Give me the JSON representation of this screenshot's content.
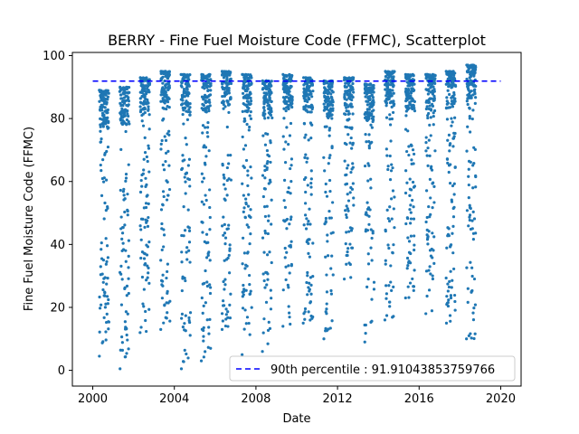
{
  "chart_data": {
    "type": "scatter",
    "title": "BERRY - Fine Fuel Moisture Code (FFMC), Scatterplot",
    "xlabel": "Date",
    "ylabel": "Fine Fuel Moisture Code (FFMC)",
    "xlim": [
      "1999-01-01",
      "2020-12-31"
    ],
    "ylim": [
      -5,
      101
    ],
    "xticks": [
      "2000",
      "2004",
      "2008",
      "2012",
      "2016",
      "2020"
    ],
    "yticks": [
      0,
      20,
      40,
      60,
      80,
      100
    ],
    "grid": false,
    "marker_color": "#1f77b4",
    "reference_line": {
      "label": "90th percentile : 91.91043853759766",
      "value": 91.91043853759766,
      "color": "#0000ff",
      "style": "dashed",
      "x_range": [
        "2000-01-01",
        "2020-01-01"
      ]
    },
    "legend_position": "lower right",
    "seasons": [
      {
        "year": 2000,
        "min": 4.5,
        "max": 89
      },
      {
        "year": 2001,
        "min": 0.5,
        "max": 90
      },
      {
        "year": 2002,
        "min": 12,
        "max": 93
      },
      {
        "year": 2003,
        "min": 13,
        "max": 95
      },
      {
        "year": 2004,
        "min": 0.5,
        "max": 94
      },
      {
        "year": 2005,
        "min": 3,
        "max": 94
      },
      {
        "year": 2006,
        "min": 13,
        "max": 95
      },
      {
        "year": 2007,
        "min": 5,
        "max": 94
      },
      {
        "year": 2008,
        "min": 6,
        "max": 92
      },
      {
        "year": 2009,
        "min": 14,
        "max": 94
      },
      {
        "year": 2010,
        "min": 15,
        "max": 93
      },
      {
        "year": 2011,
        "min": 10,
        "max": 92
      },
      {
        "year": 2012,
        "min": 29,
        "max": 93
      },
      {
        "year": 2013,
        "min": 9,
        "max": 91
      },
      {
        "year": 2014,
        "min": 16,
        "max": 95
      },
      {
        "year": 2015,
        "min": 23,
        "max": 94
      },
      {
        "year": 2016,
        "min": 18,
        "max": 94
      },
      {
        "year": 2017,
        "min": 15,
        "max": 95
      },
      {
        "year": 2018,
        "min": 10,
        "max": 97
      }
    ]
  }
}
